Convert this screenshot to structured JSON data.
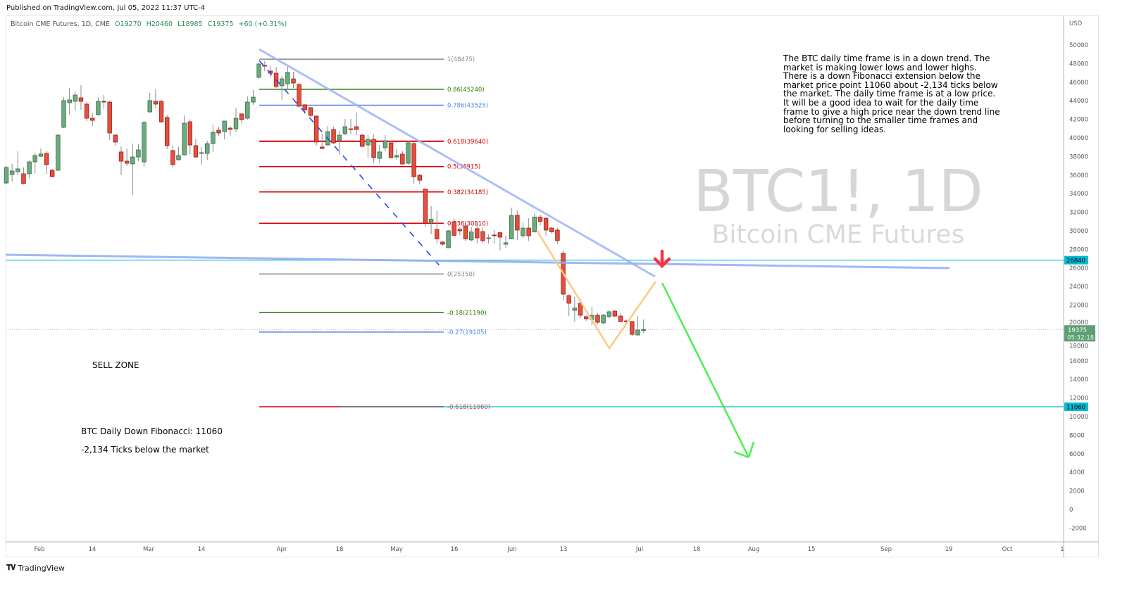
{
  "header": {
    "published": "Published on TradingView.com, Jul 05, 2022 11:37 UTC-4",
    "symbol": "Bitcoin CME Futures, 1D, CME",
    "open": "O19270",
    "high": "H20460",
    "low": "L18985",
    "close": "C19375",
    "change": "+60 (+0.31%)"
  },
  "watermark": {
    "ticker": "BTC1!, 1D",
    "name": "Bitcoin CME Futures"
  },
  "annotations": {
    "note": "The BTC daily time frame is in a down trend. The market is making lower lows and lower highs. There is a down Fibonacci extension below the market price point 11060 about -2,134 ticks below the market. The daily time frame is at a low price. It will be a good idea to wait for the daily time frame to give a high price near the down trend line before turning to the smaller time frames and looking for selling ideas.",
    "sell_zone": "SELL ZONE",
    "fib_target": "BTC Daily Down Fibonacci: 11060",
    "ticks_below": "-2,134 Ticks below the market"
  },
  "footer": {
    "brand": "TradingView"
  },
  "colors": {
    "up": "#6fa97f",
    "down": "#e2513c",
    "trendline": "#9db4f7",
    "cyan": "#00bcd4",
    "fib_red": "#d40000",
    "fib_green": "#2a7d00",
    "fib_blue": "#4d86f0",
    "fib_gray": "#888888",
    "arrow_green": "#4cf04c",
    "arrow_red": "#f23645",
    "zigzag": "#ffc880"
  },
  "chart_data": {
    "type": "candlestick",
    "currency": "USD",
    "ylim": [
      -3500,
      54000
    ],
    "y_ticks": [
      -2000,
      0,
      2000,
      4000,
      6000,
      8000,
      10000,
      12000,
      14000,
      16000,
      18000,
      20000,
      22000,
      24000,
      26000,
      28000,
      30000,
      32000,
      34000,
      36000,
      38000,
      40000,
      42000,
      44000,
      46000,
      48000,
      50000
    ],
    "x_ticks": [
      "Feb",
      "14",
      "Mar",
      "14",
      "Apr",
      "18",
      "May",
      "16",
      "Jun",
      "13",
      "Jul",
      "18",
      "Aug",
      "15",
      "Sep",
      "19",
      "Oct",
      "1"
    ],
    "price_labels": {
      "level": "26840",
      "target": "11060",
      "last": "19375",
      "countdown": "05:32:18"
    },
    "fib_levels": [
      {
        "label": "1(48475)",
        "price": 48475,
        "color": "gray"
      },
      {
        "label": "0.86(45240)",
        "price": 45240,
        "color": "green"
      },
      {
        "label": "0.786(43525)",
        "price": 43525,
        "color": "blue"
      },
      {
        "label": "0.618(39640)",
        "price": 39640,
        "color": "red"
      },
      {
        "label": "0.5(36915)",
        "price": 36915,
        "color": "red"
      },
      {
        "label": "0.382(34185)",
        "price": 34185,
        "color": "red"
      },
      {
        "label": "0.236(30810)",
        "price": 30810,
        "color": "red"
      },
      {
        "label": "0(25350)",
        "price": 25350,
        "color": "gray"
      },
      {
        "label": "-0.18(21190)",
        "price": 21190,
        "color": "green"
      },
      {
        "label": "-0.27(19105)",
        "price": 19105,
        "color": "blue"
      },
      {
        "label": "-0.618(11060)",
        "price": 11060,
        "color": "red"
      }
    ],
    "candles_ohlc": [
      [
        35150,
        37000,
        35000,
        36820
      ],
      [
        36060,
        37200,
        35300,
        36440
      ],
      [
        36360,
        38560,
        35990,
        36670
      ],
      [
        36140,
        36820,
        35000,
        35080
      ],
      [
        36140,
        37580,
        35680,
        37420
      ],
      [
        37420,
        38410,
        36210,
        38110
      ],
      [
        38030,
        38860,
        37950,
        38260
      ],
      [
        38330,
        38560,
        36140,
        37120
      ],
      [
        36520,
        36670,
        35760,
        35830
      ],
      [
        36520,
        40450,
        36440,
        40300
      ],
      [
        41140,
        44390,
        41060,
        44020
      ],
      [
        43790,
        45380,
        42500,
        44090
      ],
      [
        43940,
        45000,
        42950,
        44620
      ],
      [
        44320,
        45680,
        43030,
        43940
      ],
      [
        43640,
        43860,
        41820,
        42120
      ],
      [
        42120,
        42650,
        41290,
        41890
      ],
      [
        42500,
        44390,
        42420,
        43940
      ],
      [
        43940,
        44620,
        43110,
        43860
      ],
      [
        43860,
        44020,
        39770,
        40530
      ],
      [
        40300,
        40450,
        39170,
        39550
      ],
      [
        38490,
        39090,
        35990,
        37500
      ],
      [
        37500,
        38860,
        36970,
        37270
      ],
      [
        37200,
        39390,
        33860,
        37950
      ],
      [
        37950,
        39320,
        37500,
        38710
      ],
      [
        37420,
        41820,
        36890,
        41670
      ],
      [
        42800,
        44850,
        42730,
        44020
      ],
      [
        43940,
        45230,
        43180,
        43640
      ],
      [
        43940,
        44090,
        41590,
        41740
      ],
      [
        42200,
        42500,
        38790,
        39170
      ],
      [
        38640,
        39170,
        36820,
        37120
      ],
      [
        37650,
        39020,
        37580,
        38110
      ],
      [
        38180,
        42420,
        38110,
        41590
      ],
      [
        41740,
        41970,
        38260,
        39240
      ],
      [
        39170,
        39920,
        37880,
        37950
      ],
      [
        38330,
        39020,
        37120,
        38410
      ],
      [
        38330,
        39700,
        37650,
        39390
      ],
      [
        39390,
        41440,
        38490,
        40610
      ],
      [
        40830,
        41210,
        40230,
        40530
      ],
      [
        40680,
        41820,
        39850,
        41820
      ],
      [
        41060,
        41290,
        40230,
        40910
      ],
      [
        40980,
        43180,
        40680,
        42120
      ],
      [
        42580,
        42650,
        41520,
        41970
      ],
      [
        42120,
        44470,
        41970,
        43860
      ],
      [
        43860,
        45150,
        43560,
        44390
      ],
      [
        46520,
        48110,
        46360,
        47960
      ],
      [
        47800,
        48260,
        47200,
        47730
      ],
      [
        47200,
        47800,
        46520,
        46970
      ],
      [
        46970,
        47650,
        45380,
        45530
      ],
      [
        45610,
        46670,
        44090,
        46360
      ],
      [
        45830,
        47650,
        45150,
        47050
      ],
      [
        46360,
        47120,
        45380,
        45910
      ],
      [
        45760,
        45990,
        43260,
        43410
      ],
      [
        43560,
        43640,
        42580,
        43030
      ],
      [
        43260,
        43330,
        42270,
        42420
      ],
      [
        42350,
        42420,
        39170,
        39550
      ],
      [
        39020,
        40450,
        38790,
        38860
      ],
      [
        39240,
        41290,
        39170,
        40680
      ],
      [
        40910,
        41210,
        39320,
        39470
      ],
      [
        39770,
        40760,
        38180,
        40300
      ],
      [
        40450,
        42050,
        40300,
        41210
      ],
      [
        40980,
        42050,
        40450,
        40910
      ],
      [
        41210,
        42730,
        40300,
        40910
      ],
      [
        40300,
        40450,
        39020,
        39090
      ],
      [
        39240,
        40300,
        37880,
        39850
      ],
      [
        39850,
        40380,
        37270,
        37880
      ],
      [
        37800,
        39240,
        37270,
        38490
      ],
      [
        38940,
        40300,
        38560,
        39700
      ],
      [
        39470,
        39700,
        37800,
        37880
      ],
      [
        37950,
        38790,
        37650,
        38110
      ],
      [
        38260,
        38560,
        37120,
        37200
      ],
      [
        37270,
        39700,
        37120,
        39470
      ],
      [
        39390,
        39550,
        35080,
        35830
      ],
      [
        35980,
        36140,
        35000,
        35450
      ],
      [
        34500,
        34550,
        30380,
        30830
      ],
      [
        30930,
        32650,
        29620,
        31250
      ],
      [
        30150,
        32120,
        28640,
        29130
      ],
      [
        28790,
        28870,
        28410,
        28560
      ],
      [
        28180,
        30080,
        28110,
        30000
      ],
      [
        30980,
        31360,
        29430,
        29510
      ],
      [
        30150,
        30380,
        29510,
        30000
      ],
      [
        30530,
        30610,
        28860,
        29130
      ],
      [
        29020,
        30380,
        28860,
        29870
      ],
      [
        30230,
        30760,
        28640,
        29240
      ],
      [
        29920,
        30380,
        28640,
        28940
      ],
      [
        29170,
        29620,
        28640,
        29240
      ],
      [
        29550,
        30080,
        28640,
        29470
      ],
      [
        29800,
        29880,
        27880,
        29320
      ],
      [
        28560,
        29500,
        28130,
        28720
      ],
      [
        29130,
        32500,
        29100,
        31630
      ],
      [
        31670,
        32200,
        29000,
        30080
      ],
      [
        29470,
        30900,
        29240,
        30300
      ],
      [
        30300,
        31360,
        28900,
        29470
      ],
      [
        29880,
        31820,
        29800,
        31480
      ],
      [
        31480,
        31740,
        30610,
        31000
      ],
      [
        31360,
        31440,
        29500,
        30080
      ],
      [
        30300,
        30450,
        29700,
        29880
      ],
      [
        30080,
        30300,
        28600,
        28950
      ],
      [
        27580,
        27880,
        22500,
        23180
      ],
      [
        23030,
        23180,
        20830,
        22200
      ],
      [
        21440,
        22880,
        20230,
        21670
      ],
      [
        22200,
        22650,
        20610,
        20910
      ],
      [
        20760,
        20910,
        20300,
        20530
      ],
      [
        20450,
        21820,
        19850,
        20910
      ],
      [
        20910,
        21140,
        19920,
        20150
      ],
      [
        20080,
        21060,
        20000,
        20910
      ],
      [
        20760,
        21440,
        20610,
        21290
      ],
      [
        21360,
        21440,
        20680,
        20830
      ],
      [
        20830,
        21140,
        20150,
        20230
      ],
      [
        20300,
        20450,
        20150,
        20230
      ],
      [
        20230,
        20300,
        18640,
        18860
      ],
      [
        18790,
        20830,
        18710,
        19320
      ],
      [
        19270,
        20460,
        18985,
        19375
      ]
    ]
  }
}
